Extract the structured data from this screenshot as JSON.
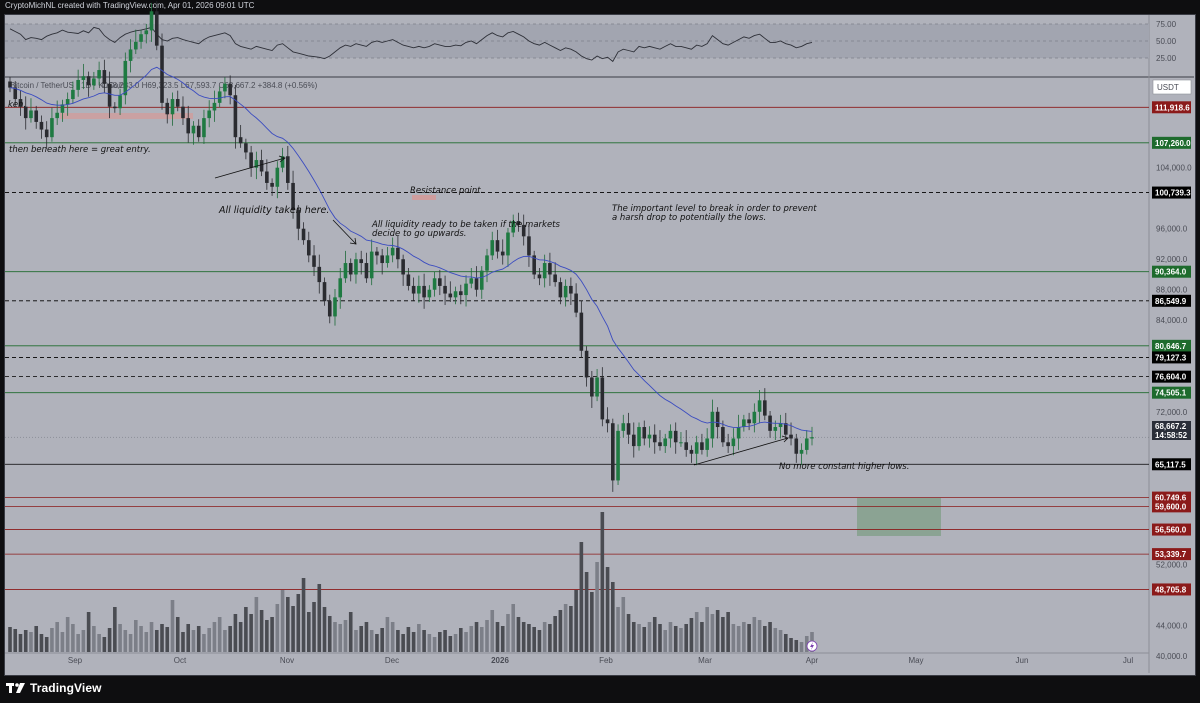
{
  "header": {
    "text": "CryptoMichNL created with TradingView.com, Apr 01, 2026 09:01 UTC"
  },
  "footer": {
    "brand": "TradingView"
  },
  "chart_data": {
    "type": "candlestick",
    "symbol_line": "Bitcoin / TetherUS · 1D · KuCoin",
    "ohlc_line": "O68,283.0 H69,323.5 L67,593.7 C68,667.2 +384.8 (+0.56%)",
    "currency_label": "USDT",
    "price_axis": {
      "ticks": [
        104000,
        96000,
        92000,
        88000,
        84000,
        72000,
        52000,
        44000,
        40000
      ],
      "tick_labels": [
        "104,000.0",
        "96,000.0",
        "92,000.0",
        "88,000.0",
        "84,000.0",
        "72,000.0",
        "52,000.0",
        "44,000.0",
        "40,000.0"
      ]
    },
    "rsi_axis": {
      "ticks": [
        75,
        50,
        25
      ],
      "tick_labels": [
        "75.00",
        "50.00",
        "25.00"
      ]
    },
    "time_axis": [
      "Sep",
      "Oct",
      "Nov",
      "Dec",
      "2026",
      "Feb",
      "Mar",
      "Apr",
      "May",
      "Jun",
      "Jul"
    ],
    "levels": [
      {
        "price": 111918.6,
        "label": "111,918.6",
        "color": "#8b1a1a",
        "style": "solid"
      },
      {
        "price": 107260.0,
        "label": "107,260.0",
        "color": "#1e6b2d",
        "style": "solid"
      },
      {
        "price": 100739.3,
        "label": "100,739.3",
        "color": "#000000",
        "style": "dashed"
      },
      {
        "price": 90364.0,
        "label": "90,364.0",
        "color": "#1e6b2d",
        "style": "solid"
      },
      {
        "price": 86549.9,
        "label": "86,549.9",
        "color": "#000000",
        "style": "dashed"
      },
      {
        "price": 80646.7,
        "label": "80,646.7",
        "color": "#1e6b2d",
        "style": "solid"
      },
      {
        "price": 79127.3,
        "label": "79,127.3",
        "color": "#000000",
        "style": "dashed"
      },
      {
        "price": 76604.0,
        "label": "76,604.0",
        "color": "#000000",
        "style": "dashed"
      },
      {
        "price": 74505.1,
        "label": "74,505.1",
        "color": "#1e6b2d",
        "style": "solid"
      },
      {
        "price": 65117.5,
        "label": "65,117.5",
        "color": "#000000",
        "style": "solid"
      },
      {
        "price": 60749.6,
        "label": "60,749.6",
        "color": "#8b1a1a",
        "style": "solid"
      },
      {
        "price": 59600.0,
        "label": "59,600.0",
        "color": "#8b1a1a",
        "style": "solid"
      },
      {
        "price": 56560.0,
        "label": "56,560.0",
        "color": "#8b1a1a",
        "style": "solid"
      },
      {
        "price": 53339.7,
        "label": "53,339.7",
        "color": "#8b1a1a",
        "style": "solid"
      },
      {
        "price": 48705.8,
        "label": "48,705.8",
        "color": "#8b1a1a",
        "style": "solid"
      }
    ],
    "last_price": {
      "price": 68667.2,
      "label": "68,667.2",
      "countdown": "14:58:52",
      "color": "#2a2e39"
    },
    "annotations": [
      {
        "text": "ken.",
        "style": "normal"
      },
      {
        "text": "then beneath here = great entry.",
        "style": "normal"
      },
      {
        "text": "All liquidity taken here.",
        "style": "bold"
      },
      {
        "text": "Resistance point.",
        "style": "normal"
      },
      {
        "text": "All liquidity ready to be taken if the markets",
        "style": "normal"
      },
      {
        "text": "decide to go upwards.",
        "style": "normal"
      },
      {
        "text": "The important level to break in order to prevent",
        "style": "normal"
      },
      {
        "text": "a harsh drop to potentially the lows.",
        "style": "normal"
      },
      {
        "text": "No more constant higher lows.",
        "style": "normal"
      }
    ],
    "candles_close": [
      114500,
      113000,
      112000,
      110500,
      111500,
      110000,
      109000,
      108000,
      110500,
      111200,
      112300,
      113000,
      114200,
      115500,
      116000,
      114800,
      115700,
      116800,
      115000,
      112000,
      111800,
      113500,
      118000,
      119500,
      120500,
      121500,
      122000,
      124500,
      120000,
      112500,
      111000,
      113000,
      112000,
      110500,
      108500,
      109500,
      108000,
      110500,
      111500,
      112500,
      114000,
      115000,
      113500,
      108000,
      107200,
      106000,
      104000,
      105000,
      103500,
      102000,
      101500,
      104000,
      105500,
      102000,
      98500,
      96000,
      94500,
      92500,
      91000,
      89000,
      86500,
      84500,
      87000,
      89500,
      91500,
      90000,
      92000,
      91500,
      89500,
      93000,
      92500,
      91500,
      92500,
      93500,
      92000,
      90000,
      88500,
      87500,
      88500,
      87000,
      88000,
      89500,
      88500,
      87500,
      87000,
      87800,
      87300,
      88800,
      89500,
      88000,
      90500,
      92500,
      94500,
      93000,
      92500,
      95500,
      97000,
      96500,
      95000,
      92500,
      90000,
      89500,
      91500,
      90000,
      89000,
      87000,
      88500,
      87500,
      85000,
      80000,
      76500,
      74000,
      76500,
      71000,
      70500,
      63000,
      69500,
      70500,
      69000,
      67500,
      70000,
      68500,
      69000,
      68000,
      67500,
      68500,
      69500,
      68000,
      68000,
      67000,
      66500,
      68000,
      67000,
      68500,
      72000,
      70000,
      68000,
      67500,
      68500,
      70000,
      71000,
      70500,
      72000,
      73500,
      71500,
      69500,
      70000,
      70500,
      69000,
      68500,
      66500,
      67000,
      68500,
      68667
    ],
    "rsi_values": [
      68,
      64,
      60,
      52,
      55,
      54,
      52,
      57,
      60,
      62,
      66,
      63,
      62,
      61,
      65,
      62,
      70,
      68,
      58,
      52,
      48,
      55,
      60,
      63,
      65,
      66,
      68,
      70,
      60,
      52,
      50,
      54,
      55,
      52,
      50,
      48,
      46,
      52,
      56,
      58,
      60,
      62,
      58,
      46,
      42,
      40,
      38,
      42,
      40,
      38,
      36,
      44,
      46,
      40,
      34,
      32,
      30,
      28,
      27,
      26,
      24,
      28,
      34,
      40,
      44,
      42,
      46,
      44,
      42,
      48,
      50,
      48,
      50,
      52,
      48,
      44,
      42,
      40,
      42,
      40,
      42,
      46,
      44,
      42,
      42,
      44,
      43,
      48,
      50,
      46,
      52,
      58,
      62,
      58,
      56,
      62,
      64,
      60,
      56,
      50,
      46,
      44,
      48,
      44,
      40,
      36,
      40,
      38,
      34,
      28,
      24,
      22,
      28,
      24,
      26,
      20,
      34,
      38,
      36,
      34,
      42,
      40,
      42,
      40,
      38,
      42,
      46,
      42,
      42,
      40,
      38,
      44,
      42,
      46,
      58,
      52,
      46,
      44,
      48,
      52,
      56,
      54,
      58,
      60,
      54,
      48,
      48,
      50,
      46,
      44,
      40,
      42,
      46,
      48
    ],
    "volume_values": [
      25,
      23,
      18,
      22,
      20,
      26,
      18,
      15,
      24,
      30,
      20,
      35,
      28,
      18,
      22,
      40,
      26,
      18,
      15,
      24,
      45,
      28,
      22,
      18,
      32,
      26,
      20,
      30,
      22,
      28,
      25,
      52,
      35,
      20,
      28,
      22,
      26,
      18,
      24,
      30,
      35,
      22,
      26,
      38,
      30,
      45,
      38,
      55,
      42,
      32,
      35,
      48,
      62,
      55,
      46,
      58,
      74,
      40,
      50,
      68,
      45,
      36,
      30,
      28,
      32,
      40,
      22,
      26,
      30,
      22,
      18,
      24,
      35,
      30,
      22,
      18,
      25,
      20,
      28,
      22,
      18,
      15,
      20,
      22,
      16,
      18,
      24,
      20,
      26,
      30,
      25,
      32,
      42,
      30,
      26,
      38,
      48,
      35,
      30,
      28,
      25,
      22,
      30,
      28,
      36,
      42,
      48,
      46,
      62,
      110,
      80,
      60,
      90,
      140,
      85,
      70,
      45,
      55,
      38,
      30,
      28,
      25,
      30,
      35,
      28,
      22,
      30,
      26,
      24,
      28,
      34,
      40,
      30,
      45,
      38,
      42,
      35,
      40,
      28,
      26,
      30,
      28,
      35,
      32,
      26,
      30,
      24,
      22,
      18,
      14,
      12,
      10,
      16,
      20
    ]
  }
}
